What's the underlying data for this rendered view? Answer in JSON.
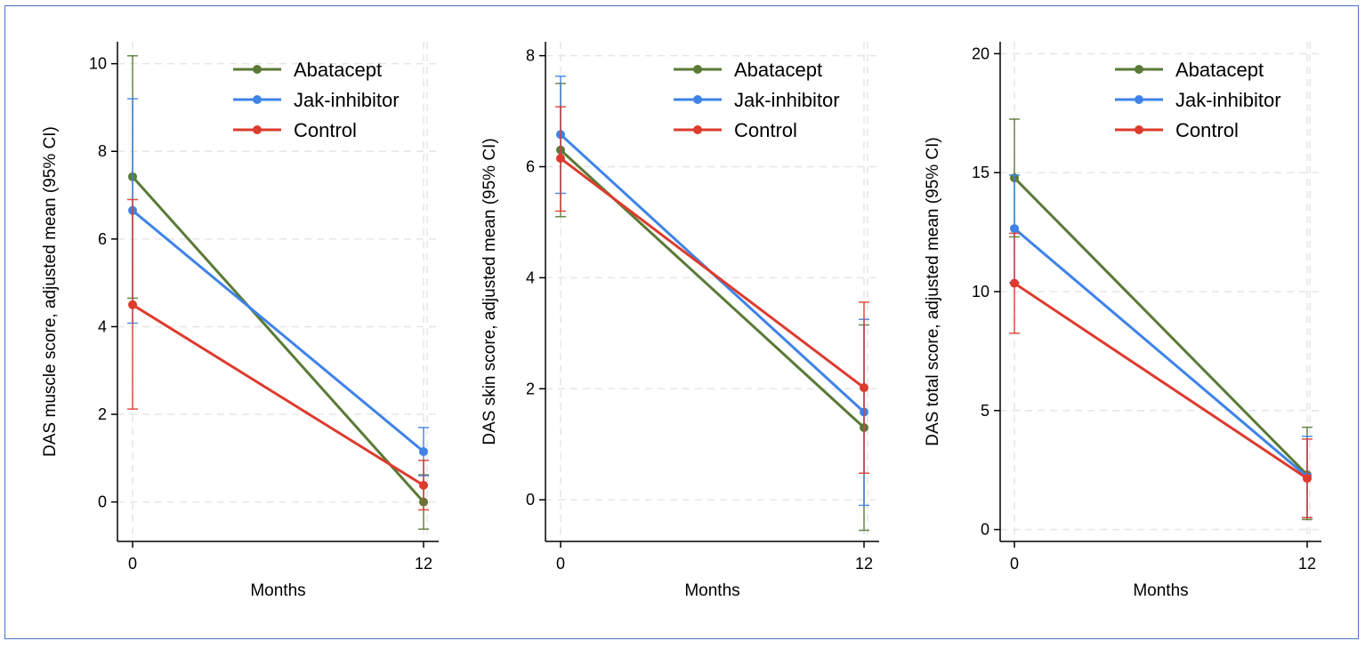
{
  "colors": {
    "Abatacept": "#5a7a36",
    "Jak-inhibitor": "#3f83e8",
    "Control": "#dd3b2e",
    "grid": "#e6e6e6",
    "frame": "#4a72c4"
  },
  "chart_data": [
    {
      "type": "line",
      "title": "",
      "xlabel": "Months",
      "ylabel": "DAS muscle score, adjusted mean (95% CI)",
      "x": [
        0,
        12
      ],
      "x_ticks": [
        "0",
        "12"
      ],
      "y_ticks": [
        "0",
        "2",
        "4",
        "6",
        "8",
        "10"
      ],
      "ylim": [
        -0.9,
        10.5
      ],
      "grid": true,
      "legend": "top-right",
      "series": [
        {
          "name": "Abatacept",
          "values": [
            7.42,
            0.0
          ],
          "ci_low": [
            4.65,
            -0.62
          ],
          "ci_high": [
            10.18,
            0.62
          ]
        },
        {
          "name": "Jak-inhibitor",
          "values": [
            6.65,
            1.15
          ],
          "ci_low": [
            4.08,
            0.6
          ],
          "ci_high": [
            9.2,
            1.7
          ]
        },
        {
          "name": "Control",
          "values": [
            4.5,
            0.38
          ],
          "ci_low": [
            2.12,
            -0.18
          ],
          "ci_high": [
            6.9,
            0.95
          ]
        }
      ]
    },
    {
      "type": "line",
      "title": "",
      "xlabel": "Months",
      "ylabel": "DAS skin score, adjusted mean (95% CI)",
      "x": [
        0,
        12
      ],
      "x_ticks": [
        "0",
        "12"
      ],
      "y_ticks": [
        "0",
        "2",
        "4",
        "6",
        "8"
      ],
      "ylim": [
        -0.75,
        8.25
      ],
      "grid": true,
      "legend": "top-right",
      "series": [
        {
          "name": "Abatacept",
          "values": [
            6.3,
            1.3
          ],
          "ci_low": [
            5.1,
            -0.55
          ],
          "ci_high": [
            7.5,
            3.15
          ]
        },
        {
          "name": "Jak-inhibitor",
          "values": [
            6.58,
            1.58
          ],
          "ci_low": [
            5.52,
            -0.1
          ],
          "ci_high": [
            7.63,
            3.25
          ]
        },
        {
          "name": "Control",
          "values": [
            6.15,
            2.02
          ],
          "ci_low": [
            5.2,
            0.48
          ],
          "ci_high": [
            7.08,
            3.56
          ]
        }
      ]
    },
    {
      "type": "line",
      "title": "",
      "xlabel": "Months",
      "ylabel": "DAS total score, adjusted mean (95% CI)",
      "x": [
        0,
        12
      ],
      "x_ticks": [
        "0",
        "12"
      ],
      "y_ticks": [
        "0",
        "5",
        "10",
        "15",
        "20"
      ],
      "ylim": [
        -0.5,
        20.5
      ],
      "grid": true,
      "legend": "top-right",
      "series": [
        {
          "name": "Abatacept",
          "values": [
            14.78,
            2.3
          ],
          "ci_low": [
            12.3,
            0.42
          ],
          "ci_high": [
            17.25,
            4.3
          ]
        },
        {
          "name": "Jak-inhibitor",
          "values": [
            12.65,
            2.22
          ],
          "ci_low": [
            10.38,
            0.5
          ],
          "ci_high": [
            14.9,
            3.92
          ]
        },
        {
          "name": "Control",
          "values": [
            10.35,
            2.15
          ],
          "ci_low": [
            8.25,
            0.5
          ],
          "ci_high": [
            12.45,
            3.8
          ]
        }
      ]
    }
  ]
}
